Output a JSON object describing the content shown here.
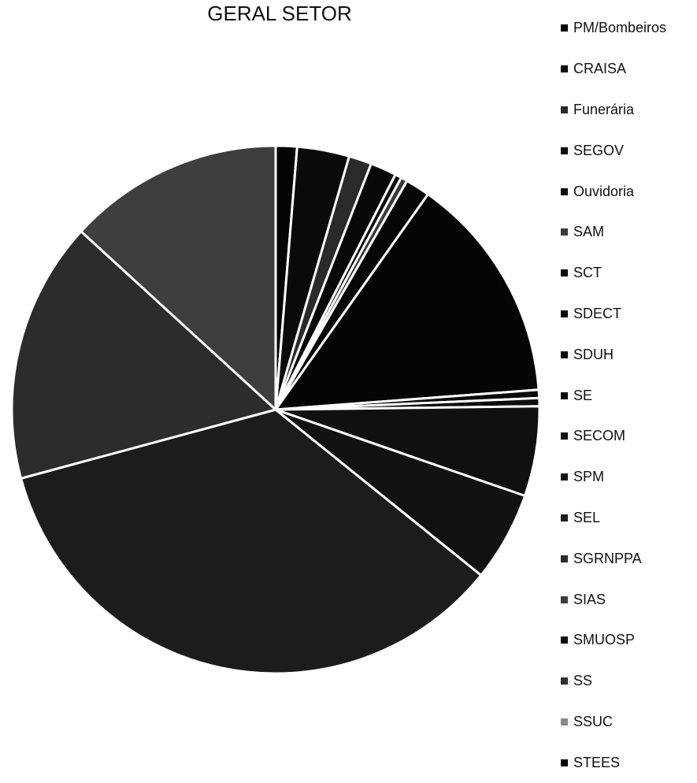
{
  "chart_data": {
    "type": "pie",
    "title": "GERAL SETOR",
    "legend_position": "right",
    "categories": [
      "PM/Bombeiros",
      "CRAISA",
      "Funerária",
      "SEGOV",
      "Ouvidoria",
      "SAM",
      "SCT",
      "SDECT",
      "SDUH",
      "SE",
      "SECOM",
      "SPM",
      "SEL",
      "SGRNPPA",
      "SIAS",
      "SMUOSP",
      "SS",
      "SSUC",
      "STEES"
    ],
    "values": [
      1.3,
      3.2,
      1.4,
      1.6,
      0.4,
      0.4,
      1.5,
      14.0,
      0.5,
      0.5,
      5.5,
      5.5,
      35.0,
      16.0,
      13.2,
      0.0,
      0.0,
      0.0,
      0.0
    ],
    "colors": [
      "#050505",
      "#0a0a0a",
      "#2a2a2a",
      "#080808",
      "#0d0d0d",
      "#3a3a3a",
      "#060606",
      "#050505",
      "#0a0a0a",
      "#0c0c0c",
      "#101010",
      "#121212",
      "#1c1c1c",
      "#2c2c2c",
      "#3e3e3e",
      "#0e0e0e",
      "#2f2f2f",
      "#8a8a8a",
      "#050505"
    ],
    "start_angle_deg": 0,
    "direction": "clockwise"
  }
}
